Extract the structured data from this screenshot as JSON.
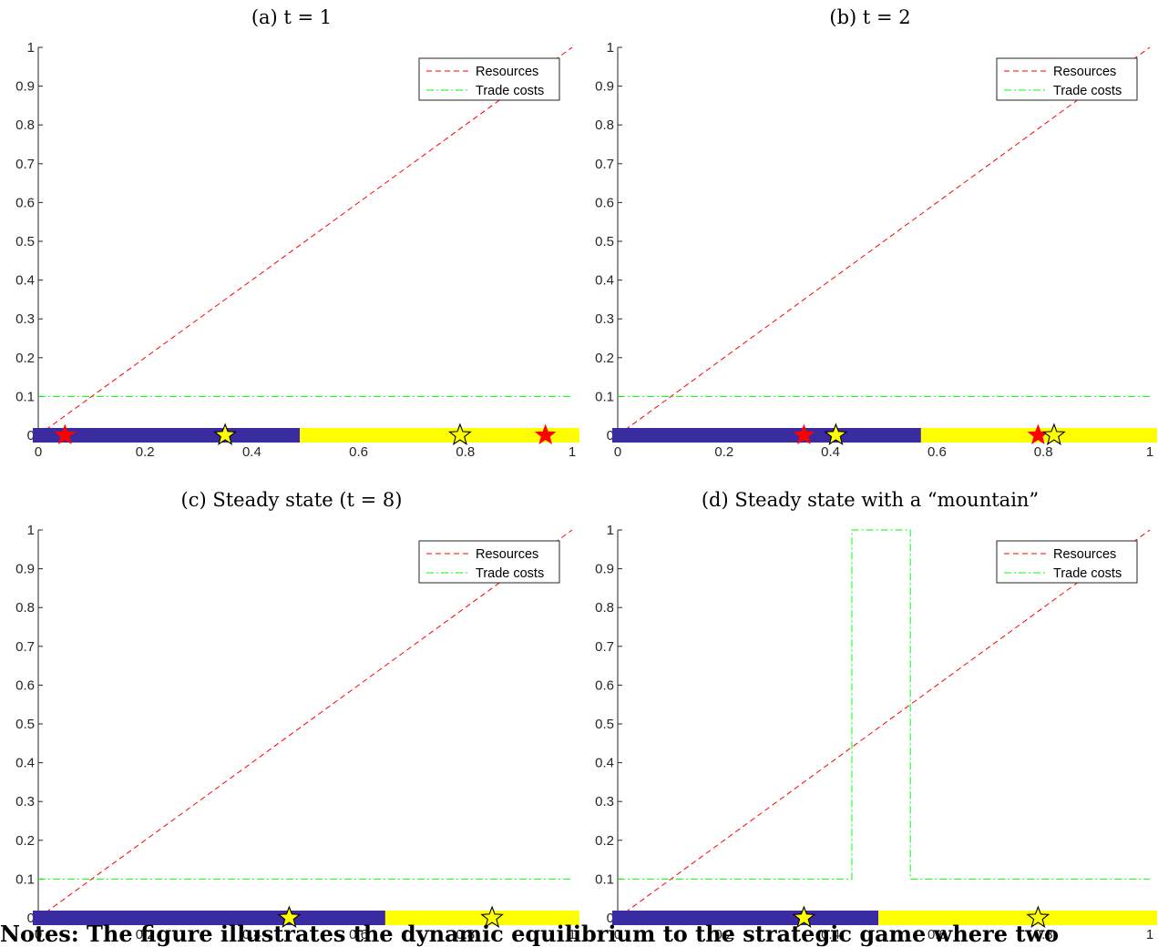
{
  "note": "Notes: The figure illustrates the dynamic equilibrium to the strategic game where two",
  "chart_data": [
    {
      "type": "line",
      "title": "(a) t = 1",
      "xlim": [
        0,
        1
      ],
      "ylim": [
        0,
        1
      ],
      "xticks": [
        "0",
        "0.2",
        "0.4",
        "0.6",
        "0.8",
        "1"
      ],
      "yticks": [
        "0",
        "0.1",
        "0.2",
        "0.3",
        "0.4",
        "0.5",
        "0.6",
        "0.7",
        "0.8",
        "0.9",
        "1"
      ],
      "legend": {
        "position": "top-right",
        "entries": [
          "Resources",
          "Trade costs"
        ]
      },
      "series": [
        {
          "name": "Resources",
          "style": "dashed",
          "color": "#ff0000",
          "x": [
            0,
            1
          ],
          "y": [
            0,
            1
          ]
        },
        {
          "name": "Trade costs",
          "style": "dashdot",
          "color": "#00ff00",
          "x": [
            0,
            1
          ],
          "y": [
            0.1,
            0.1
          ]
        }
      ],
      "territory": [
        {
          "from": 0,
          "to": 0.49,
          "color": "#3b2ba1"
        },
        {
          "from": 0.49,
          "to": 1,
          "color": "#ffff00"
        }
      ],
      "markers": [
        {
          "x": 0.05,
          "type": "filled-star",
          "color": "#ff0000"
        },
        {
          "x": 0.35,
          "type": "open-star",
          "color": "#ffff00"
        },
        {
          "x": 0.79,
          "type": "open-star",
          "color": "#ffff00"
        },
        {
          "x": 0.95,
          "type": "filled-star",
          "color": "#ff0000"
        }
      ]
    },
    {
      "type": "line",
      "title": "(b) t = 2",
      "xlim": [
        0,
        1
      ],
      "ylim": [
        0,
        1
      ],
      "xticks": [
        "0",
        "0.2",
        "0.4",
        "0.6",
        "0.8",
        "1"
      ],
      "yticks": [
        "0",
        "0.1",
        "0.2",
        "0.3",
        "0.4",
        "0.5",
        "0.6",
        "0.7",
        "0.8",
        "0.9",
        "1"
      ],
      "legend": {
        "position": "top-right",
        "entries": [
          "Resources",
          "Trade costs"
        ]
      },
      "series": [
        {
          "name": "Resources",
          "style": "dashed",
          "color": "#ff0000",
          "x": [
            0,
            1
          ],
          "y": [
            0,
            1
          ]
        },
        {
          "name": "Trade costs",
          "style": "dashdot",
          "color": "#00ff00",
          "x": [
            0,
            1
          ],
          "y": [
            0.1,
            0.1
          ]
        }
      ],
      "territory": [
        {
          "from": 0,
          "to": 0.57,
          "color": "#3b2ba1"
        },
        {
          "from": 0.57,
          "to": 1,
          "color": "#ffff00"
        }
      ],
      "markers": [
        {
          "x": 0.35,
          "type": "filled-star",
          "color": "#ff0000"
        },
        {
          "x": 0.41,
          "type": "open-star",
          "color": "#ffff00"
        },
        {
          "x": 0.79,
          "type": "filled-star",
          "color": "#ff0000"
        },
        {
          "x": 0.82,
          "type": "open-star",
          "color": "#ffff00"
        }
      ]
    },
    {
      "type": "line",
      "title": "(c) Steady state (t = 8)",
      "xlim": [
        0,
        1
      ],
      "ylim": [
        0,
        1
      ],
      "xticks": [
        "0",
        "0.2",
        "0.4",
        "0.6",
        "0.8",
        "1"
      ],
      "yticks": [
        "0",
        "0.1",
        "0.2",
        "0.3",
        "0.4",
        "0.5",
        "0.6",
        "0.7",
        "0.8",
        "0.9",
        "1"
      ],
      "legend": {
        "position": "top-right",
        "entries": [
          "Resources",
          "Trade costs"
        ]
      },
      "series": [
        {
          "name": "Resources",
          "style": "dashed",
          "color": "#ff0000",
          "x": [
            0,
            1
          ],
          "y": [
            0,
            1
          ]
        },
        {
          "name": "Trade costs",
          "style": "dashdot",
          "color": "#00ff00",
          "x": [
            0,
            1
          ],
          "y": [
            0.1,
            0.1
          ]
        }
      ],
      "territory": [
        {
          "from": 0,
          "to": 0.65,
          "color": "#3b2ba1"
        },
        {
          "from": 0.65,
          "to": 1,
          "color": "#ffff00"
        }
      ],
      "markers": [
        {
          "x": 0.47,
          "type": "open-star",
          "color": "#ffff00"
        },
        {
          "x": 0.85,
          "type": "open-star",
          "color": "#ffff00"
        }
      ]
    },
    {
      "type": "line",
      "title": "(d) Steady state with a “mountain”",
      "xlim": [
        0,
        1
      ],
      "ylim": [
        0,
        1
      ],
      "xticks": [
        "0",
        "0.2",
        "0.4",
        "0.6",
        "0.8",
        "1"
      ],
      "yticks": [
        "0",
        "0.1",
        "0.2",
        "0.3",
        "0.4",
        "0.5",
        "0.6",
        "0.7",
        "0.8",
        "0.9",
        "1"
      ],
      "legend": {
        "position": "top-right",
        "entries": [
          "Resources",
          "Trade costs"
        ]
      },
      "series": [
        {
          "name": "Resources",
          "style": "dashed",
          "color": "#ff0000",
          "x": [
            0,
            1
          ],
          "y": [
            0,
            1
          ]
        },
        {
          "name": "Trade costs",
          "style": "dashdot",
          "color": "#00ff00",
          "x": [
            0,
            0.44,
            0.44,
            0.55,
            0.55,
            1
          ],
          "y": [
            0.1,
            0.1,
            1,
            1,
            0.1,
            0.1
          ]
        }
      ],
      "territory": [
        {
          "from": 0,
          "to": 0.49,
          "color": "#3b2ba1"
        },
        {
          "from": 0.49,
          "to": 1,
          "color": "#ffff00"
        }
      ],
      "markers": [
        {
          "x": 0.35,
          "type": "open-star",
          "color": "#ffff00"
        },
        {
          "x": 0.79,
          "type": "open-star",
          "color": "#ffff00"
        }
      ]
    }
  ]
}
